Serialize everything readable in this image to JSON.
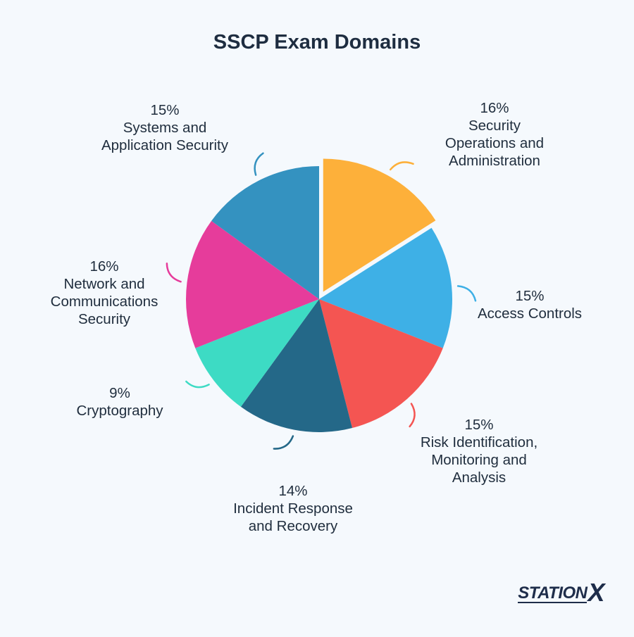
{
  "chart_data": {
    "type": "pie",
    "title": "SSCP Exam Domains",
    "slices": [
      {
        "pct_label": "16%",
        "name": [
          "Security",
          "Operations and",
          "Administration"
        ],
        "value": 16,
        "color": "#fdb03a",
        "exploded": true
      },
      {
        "pct_label": "15%",
        "name": [
          "Access Controls"
        ],
        "value": 15,
        "color": "#3eb0e6",
        "exploded": false
      },
      {
        "pct_label": "15%",
        "name": [
          "Risk Identification,",
          "Monitoring and",
          "Analysis"
        ],
        "value": 15,
        "color": "#f45552",
        "exploded": false
      },
      {
        "pct_label": "14%",
        "name": [
          "Incident Response",
          "and Recovery"
        ],
        "value": 14,
        "color": "#246888",
        "exploded": false
      },
      {
        "pct_label": "9%",
        "name": [
          "Cryptography"
        ],
        "value": 9,
        "color": "#3ddbc4",
        "exploded": false
      },
      {
        "pct_label": "16%",
        "name": [
          "Network and",
          "Communications",
          "Security"
        ],
        "value": 16,
        "color": "#e63c9b",
        "exploded": false
      },
      {
        "pct_label": "15%",
        "name": [
          "Systems and",
          "Application Security"
        ],
        "value": 15,
        "color": "#3492c0",
        "exploded": false
      }
    ]
  },
  "brand": {
    "station": "STATION",
    "x": "X"
  }
}
